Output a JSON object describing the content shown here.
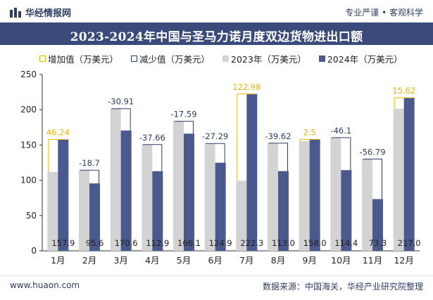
{
  "header": {
    "brand": "华经情报网",
    "tagline": "专业严谨 • 客观科学"
  },
  "title": "2023-2024年中国与圣马力诺月度双边货物进出口额",
  "legend": {
    "increase": "增加值（万美元）",
    "decrease": "减少值（万美元）",
    "y2023": "2023年（万美元）",
    "y2024": "2024年（万美元）"
  },
  "footer": {
    "url": "www.huaon.com",
    "source": "数据来源：中国海关，华经产业研究院整理"
  },
  "colors": {
    "bar2023": "#d3d3d3",
    "bar2024": "#4b5a8e",
    "increase": "#f0b400",
    "decrease": "#2d3e63",
    "titleBand": "#3a4a7a"
  },
  "chart_data": {
    "type": "bar",
    "categories": [
      "1月",
      "2月",
      "3月",
      "4月",
      "5月",
      "6月",
      "7月",
      "8月",
      "9月",
      "10月",
      "11月",
      "12月"
    ],
    "ylim": [
      0,
      250
    ],
    "yticks": [
      0,
      50,
      100,
      150,
      200,
      250
    ],
    "series": [
      {
        "name": "2023年（万美元）",
        "values": [
          111.7,
          114.3,
          201.5,
          150.6,
          183.7,
          152.2,
          99.3,
          152.6,
          155.5,
          160.5,
          130.1,
          201.38
        ]
      },
      {
        "name": "2024年（万美元）",
        "values": [
          157.9,
          95.6,
          170.6,
          112.9,
          166.1,
          124.9,
          222.3,
          113.0,
          158.0,
          114.4,
          73.3,
          217.0
        ]
      }
    ],
    "value_labels_2024": [
      "157.9",
      "95.6",
      "170.6",
      "112.9",
      "166.1",
      "124.9",
      "222.3",
      "113.0",
      "158.0",
      "114.4",
      "73.3",
      "217.0"
    ],
    "changes": [
      46.24,
      -18.7,
      -30.91,
      -37.66,
      -17.59,
      -27.29,
      122.98,
      -39.62,
      2.5,
      -46.1,
      -56.79,
      15.62
    ],
    "change_labels": [
      "46.24",
      "-18.7",
      "-30.91",
      "-37.66",
      "-17.59",
      "-27.29",
      "122.98",
      "-39.62",
      "2.5",
      "-46.1",
      "-56.79",
      "15.62"
    ]
  }
}
